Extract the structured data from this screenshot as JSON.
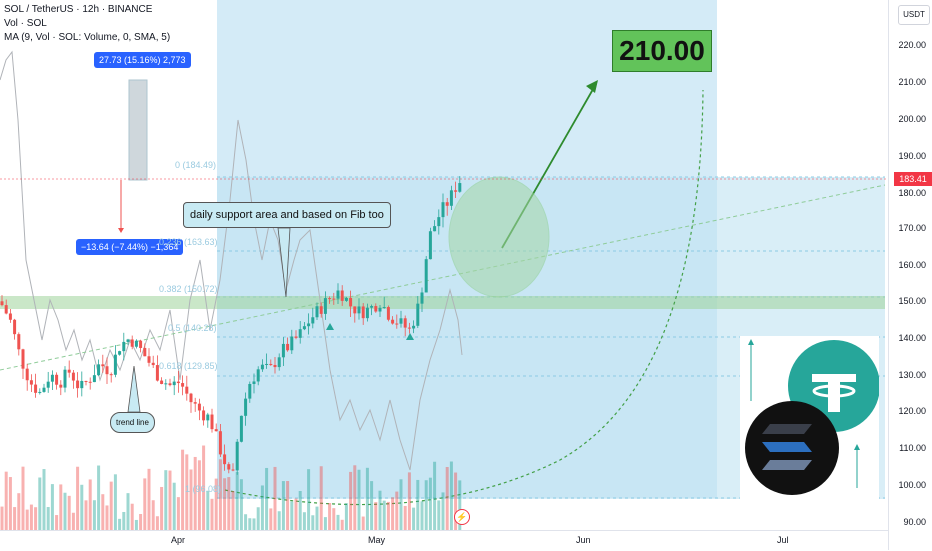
{
  "legend": {
    "title": "SOL / TetherUS · 12h · BINANCE",
    "vol": "Vol · SOL",
    "ma": "MA (9, Vol · SOL: Volume, 0, SMA, 5)"
  },
  "price_axis": {
    "currency_button": "USDT",
    "current_price": "183.41",
    "ticks": [
      "220.00",
      "210.00",
      "200.00",
      "190.00",
      "180.00",
      "170.00",
      "160.00",
      "150.00",
      "140.00",
      "130.00",
      "120.00",
      "110.00",
      "100.00",
      "90.00"
    ]
  },
  "time_axis": {
    "ticks": [
      "Apr",
      "May",
      "Jun",
      "Jul"
    ]
  },
  "measure_up": "27.73 (15.16%) 2,773",
  "measure_down": "−13.64 (−7.44%) −1,364",
  "target_label": "210.00",
  "callouts": {
    "support": "daily support area and based on Fib too",
    "trend": "trend line"
  },
  "fib_levels": [
    "0 (184.49)",
    "0.236 (163.63)",
    "0.382 (150.72)",
    "0.5 (140.28)",
    "0.618 (129.85)",
    "1 (96.08)"
  ],
  "colors": {
    "up": "#26a69a",
    "down": "#ef5350",
    "projection": "#4caf50",
    "zone": "#9fd6ec",
    "support": "#a5d6a7"
  },
  "icons": [
    "lightning-icon",
    "tether-logo",
    "solana-logo",
    "arrow-up-icon"
  ]
}
